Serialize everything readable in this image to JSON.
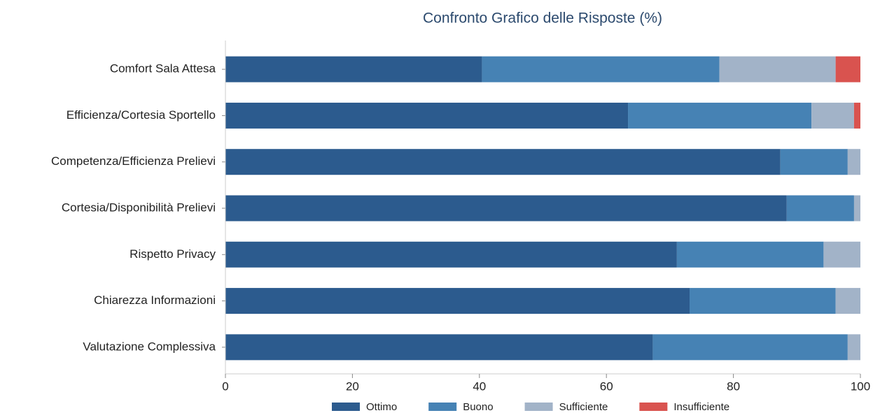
{
  "chart_data": {
    "type": "stacked-barh",
    "title": "Confronto Grafico delle Risposte (%)",
    "categories": [
      "Comfort Sala Attesa",
      "Efficienza/Cortesia Sportello",
      "Competenza/Efficienza Prelievi",
      "Cortesia/Disponibilità Prelievi",
      "Rispetto Privacy",
      "Chiarezza Informazioni",
      "Valutazione Complessiva"
    ],
    "series": [
      {
        "name": "Ottimo",
        "color": "#2c5b8e",
        "values": [
          40.4,
          63.4,
          87.4,
          88.4,
          71.1,
          73.1,
          67.3
        ]
      },
      {
        "name": "Buono",
        "color": "#4682b4",
        "values": [
          37.4,
          28.9,
          10.6,
          10.6,
          23.1,
          23.0,
          30.7
        ]
      },
      {
        "name": "Sufficiente",
        "color": "#a2b3c8",
        "values": [
          18.3,
          6.7,
          2.0,
          1.0,
          5.8,
          3.9,
          2.0
        ]
      },
      {
        "name": "Insufficiente",
        "color": "#d9534f",
        "values": [
          3.9,
          1.0,
          0,
          0,
          0,
          0,
          0
        ]
      }
    ],
    "xlim": [
      0,
      100
    ],
    "xticks": [
      0,
      20,
      40,
      60,
      80,
      100
    ],
    "legend": "bottom"
  }
}
